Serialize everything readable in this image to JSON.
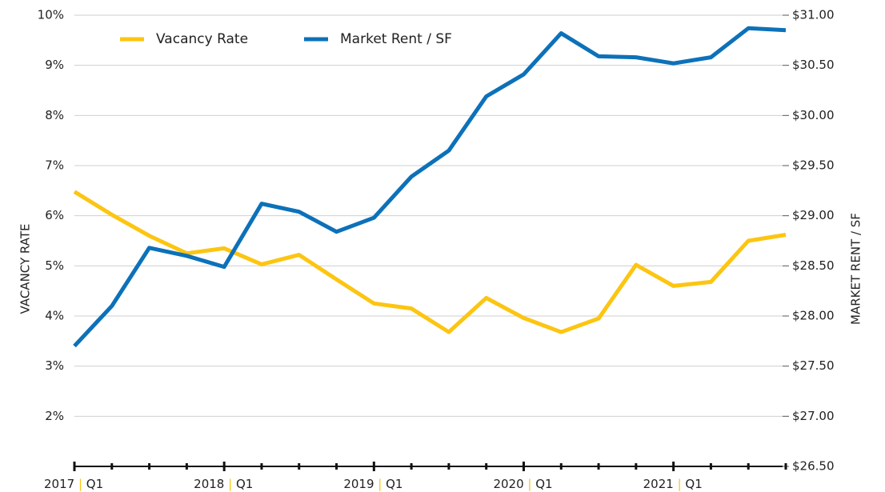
{
  "chart_data": {
    "type": "line",
    "categories": [
      "2017 | Q1",
      null,
      null,
      null,
      "2018 | Q1",
      null,
      null,
      null,
      "2019 | Q1",
      null,
      null,
      null,
      "2020 | Q1",
      null,
      null,
      null,
      "2021 | Q1",
      null,
      null,
      null
    ],
    "series": [
      {
        "name": "Vacancy Rate",
        "color": "#fcc511",
        "values": [
          6.48,
          6.02,
          5.6,
          5.25,
          5.35,
          5.03,
          5.22,
          4.73,
          4.25,
          4.15,
          3.68,
          4.36,
          3.96,
          3.68,
          3.95,
          5.02,
          4.6,
          4.68,
          5.5,
          5.62
        ]
      },
      {
        "name": "Market Rent / SF",
        "color": "#0c71b9",
        "axis": "y2",
        "values": [
          27.7,
          28.1,
          28.68,
          28.6,
          28.49,
          29.12,
          29.04,
          28.84,
          28.98,
          29.39,
          29.65,
          30.19,
          30.41,
          30.82,
          30.59,
          30.58,
          30.52,
          30.58,
          30.87,
          30.85
        ]
      }
    ],
    "ylabel": "VACANCY RATE",
    "y2label": "MARKET RENT / SF",
    "ylim": [
      1,
      10
    ],
    "yticks": [
      {
        "value": 2,
        "label": "2%"
      },
      {
        "value": 3,
        "label": "3%"
      },
      {
        "value": 4,
        "label": "4%"
      },
      {
        "value": 5,
        "label": "5%"
      },
      {
        "value": 6,
        "label": "6%"
      },
      {
        "value": 7,
        "label": "7%"
      },
      {
        "value": 8,
        "label": "8%"
      },
      {
        "value": 9,
        "label": "9%"
      },
      {
        "value": 10,
        "label": "10%"
      }
    ],
    "y2lim": [
      26.5,
      31
    ],
    "y2ticks": [
      {
        "value": 26.5,
        "label": "$26.50"
      },
      {
        "value": 27,
        "label": "$27.00"
      },
      {
        "value": 27.5,
        "label": "$27.50"
      },
      {
        "value": 28,
        "label": "$28.00"
      },
      {
        "value": 28.5,
        "label": "$28.50"
      },
      {
        "value": 29,
        "label": "$29.00"
      },
      {
        "value": 29.5,
        "label": "$29.50"
      },
      {
        "value": 30,
        "label": "$30.00"
      },
      {
        "value": 30.5,
        "label": "$30.50"
      },
      {
        "value": 31,
        "label": "$31.00"
      }
    ],
    "grid": true,
    "legend": "upper left"
  }
}
